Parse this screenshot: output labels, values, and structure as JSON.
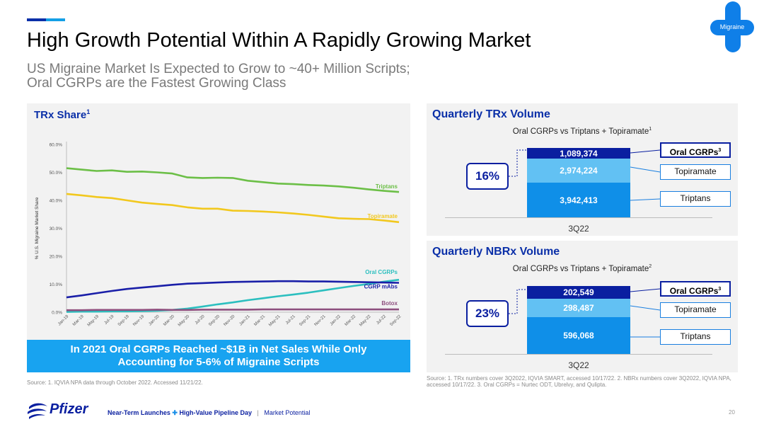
{
  "header": {
    "title": "High Growth Potential Within A Rapidly Growing Market",
    "subtitle_line1": "US Migraine Market Is Expected to Grow to ~40+ Million Scripts;",
    "subtitle_line2": "Oral CGRPs are the Fastest Growing Class",
    "badge_label": "Migraine"
  },
  "colors": {
    "brand_navy": "#0a1fa0",
    "brand_blue": "#0f8fe8",
    "light_blue": "#62c1f3",
    "callout_blue": "#18a3f0",
    "triptans": "#6cbf47",
    "topiramate": "#f2c81e",
    "oral_cgrps": "#2cbfbf",
    "cgrp_mabs": "#1a1fa8",
    "botox": "#8e4f7e"
  },
  "left_panel": {
    "title": "TRx Share",
    "title_sup": "1",
    "callout_line1": "In 2021 Oral CGRPs Reached ~$1B in Net Sales While Only",
    "callout_line2": "Accounting for 5-6% of Migraine Scripts",
    "source": "Source: 1. IQVIA NPA data through October 2022. Accessed 11/21/22."
  },
  "chart_data": [
    {
      "type": "line",
      "title": "TRx Share",
      "ylabel": "% U.S. Migraine Market Share",
      "xlabel": "",
      "ylim": [
        0,
        60
      ],
      "yticks": [
        "0.0%",
        "10.0%",
        "20.0%",
        "30.0%",
        "40.0%",
        "50.0%",
        "60.0%"
      ],
      "x": [
        "Jan-19",
        "Mar-19",
        "May-19",
        "Jul-19",
        "Sep-19",
        "Nov-19",
        "Jan-20",
        "Mar-20",
        "May-20",
        "Jul-20",
        "Sep-20",
        "Nov-20",
        "Jan-21",
        "Mar-21",
        "May-21",
        "Jul-21",
        "Sep-21",
        "Nov-21",
        "Jan-22",
        "Mar-22",
        "May-22",
        "Jul-22",
        "Sep-22"
      ],
      "grid": false,
      "legend": "inline-right",
      "series": [
        {
          "name": "Triptans",
          "values": [
            51.5,
            51.0,
            50.5,
            50.7,
            50.2,
            50.3,
            50.0,
            49.6,
            48.2,
            48.0,
            48.1,
            48.0,
            47.0,
            46.5,
            46.0,
            45.8,
            45.5,
            45.3,
            45.0,
            44.5,
            43.9,
            43.4,
            43.0
          ]
        },
        {
          "name": "Topiramate",
          "values": [
            42.3,
            41.8,
            41.2,
            40.8,
            40.0,
            39.2,
            38.7,
            38.3,
            37.5,
            37.0,
            37.0,
            36.3,
            36.2,
            36.0,
            35.7,
            35.3,
            34.8,
            34.2,
            33.6,
            33.4,
            33.3,
            32.8,
            32.2
          ]
        },
        {
          "name": "Oral CGRPs",
          "values": [
            0.1,
            0.2,
            0.2,
            0.3,
            0.3,
            0.4,
            0.5,
            0.8,
            1.3,
            2.0,
            2.8,
            3.5,
            4.3,
            5.0,
            5.7,
            6.3,
            7.0,
            7.8,
            8.6,
            9.4,
            10.1,
            10.9,
            11.6
          ]
        },
        {
          "name": "CGRP mAbs",
          "values": [
            5.3,
            6.0,
            6.8,
            7.6,
            8.3,
            8.8,
            9.3,
            9.8,
            10.2,
            10.4,
            10.6,
            10.8,
            10.9,
            11.0,
            11.1,
            11.1,
            11.0,
            11.0,
            10.9,
            10.8,
            10.7,
            10.6,
            10.5
          ]
        },
        {
          "name": "Botox",
          "values": [
            0.7,
            0.7,
            0.8,
            0.8,
            0.8,
            0.8,
            0.9,
            0.8,
            0.8,
            0.9,
            0.9,
            0.9,
            0.9,
            1.0,
            1.0,
            1.0,
            1.0,
            1.0,
            1.0,
            1.0,
            1.0,
            1.0,
            1.0
          ]
        }
      ]
    },
    {
      "type": "bar",
      "title": "Quarterly TRx Volume",
      "subtitle": "Oral CGRPs vs Triptans + Topiramate",
      "subtitle_sup": "1",
      "categories": [
        "3Q22"
      ],
      "stacked": true,
      "series": [
        {
          "name": "Triptans",
          "values": [
            3942413
          ],
          "label": "3,942,413"
        },
        {
          "name": "Topiramate",
          "values": [
            2974224
          ],
          "label": "2,974,224"
        },
        {
          "name": "Oral CGRPs",
          "name_sup": "3",
          "values": [
            1089374
          ],
          "label": "1,089,374"
        }
      ],
      "annotation": "16%"
    },
    {
      "type": "bar",
      "title": "Quarterly NBRx Volume",
      "subtitle": "Oral CGRPs vs Triptans + Topiramate",
      "subtitle_sup": "2",
      "categories": [
        "3Q22"
      ],
      "stacked": true,
      "series": [
        {
          "name": "Triptans",
          "values": [
            596068
          ],
          "label": "596,068"
        },
        {
          "name": "Topiramate",
          "values": [
            298487
          ],
          "label": "298,487"
        },
        {
          "name": "Oral CGRPs",
          "name_sup": "3",
          "values": [
            202549
          ],
          "label": "202,549"
        }
      ],
      "annotation": "23%"
    }
  ],
  "right_source": "Source: 1. TRx numbers cover 3Q2022, IQVIA SMART, accessed 10/17/22. 2. NBRx numbers cover 3Q2022, IQVIA NPA, accessed 10/17/22. 3. Oral CGRPs = Nurtec ODT, Ubrelvy, and Qulipta.",
  "footer": {
    "logo_text": "Pfizer",
    "event_part1": "Near-Term Launches",
    "event_plus": "✚",
    "event_part2": "High-Value Pipeline Day",
    "separator": "|",
    "section": "Market Potential",
    "page_number": "20"
  }
}
